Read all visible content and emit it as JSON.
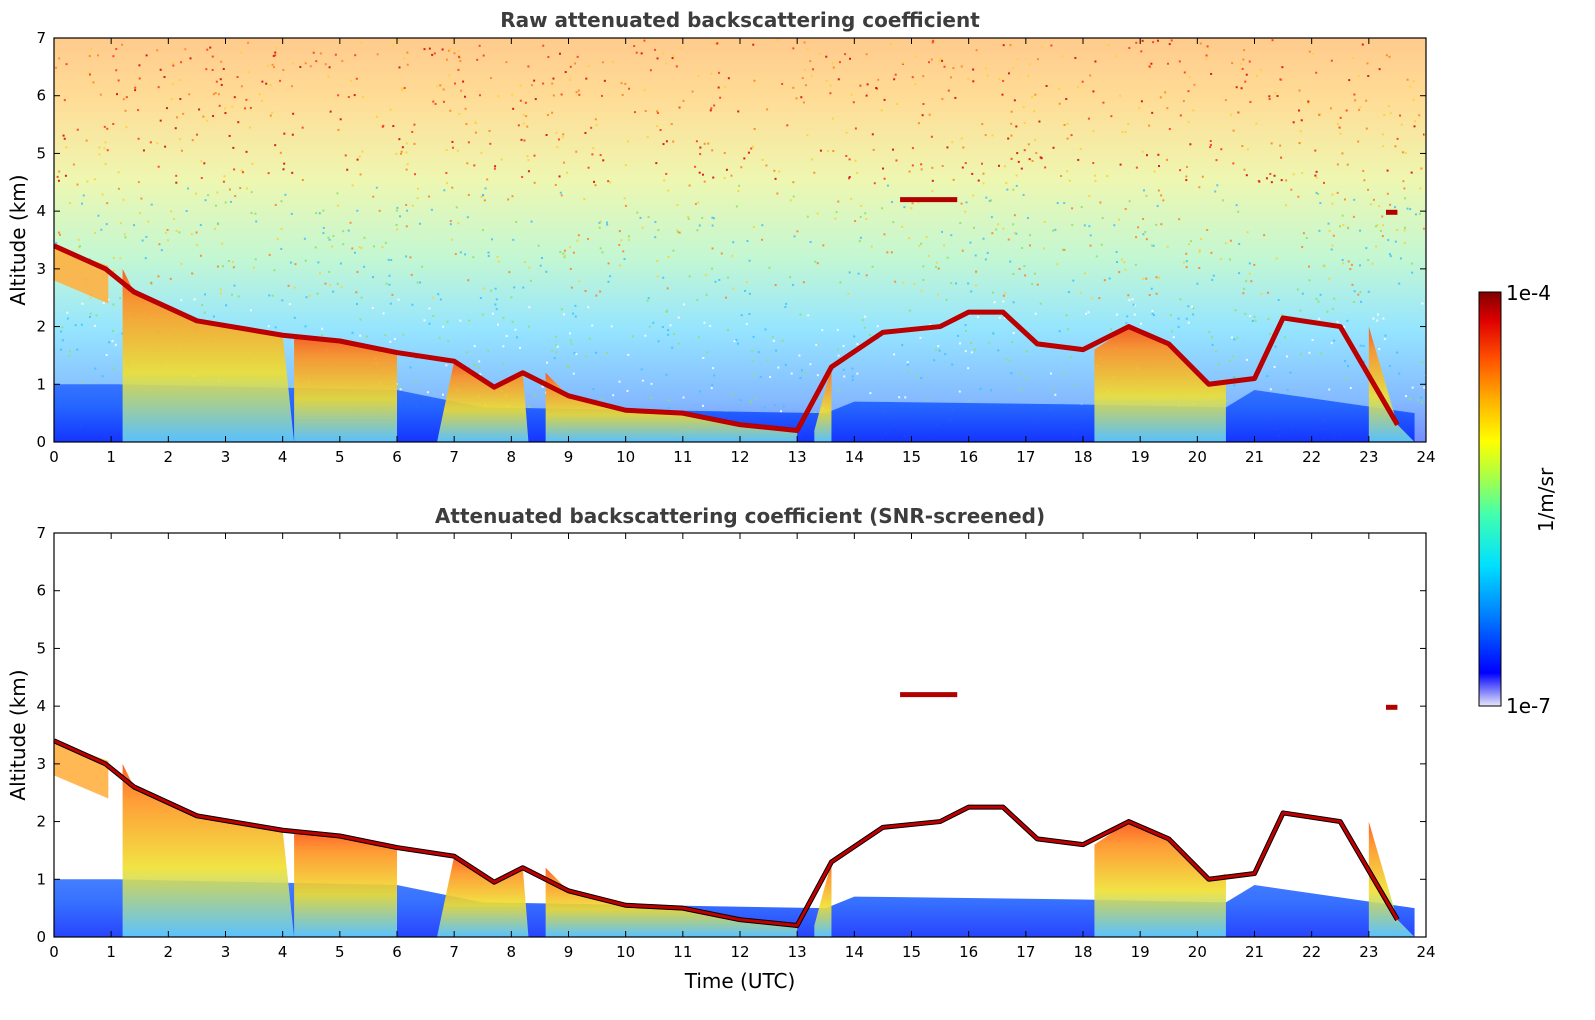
{
  "chart_data": [
    {
      "type": "heatmap",
      "title": "Raw attenuated backscattering coefficient",
      "xlabel": "",
      "ylabel": "Altitude (km)",
      "xlim": [
        0,
        24
      ],
      "ylim": [
        0,
        7
      ],
      "xticks": [
        "0",
        "1",
        "2",
        "3",
        "4",
        "5",
        "6",
        "7",
        "8",
        "9",
        "10",
        "11",
        "12",
        "13",
        "14",
        "15",
        "16",
        "17",
        "18",
        "19",
        "20",
        "21",
        "22",
        "23",
        "24"
      ],
      "yticks": [
        "0",
        "1",
        "2",
        "3",
        "4",
        "5",
        "6",
        "7"
      ],
      "cloud_base_km": [
        [
          0.0,
          3.4
        ],
        [
          0.9,
          3.0
        ],
        [
          1.4,
          2.6
        ],
        [
          2.5,
          2.1
        ],
        [
          4.0,
          1.85
        ],
        [
          5.0,
          1.75
        ],
        [
          6.0,
          1.55
        ],
        [
          7.0,
          1.4
        ],
        [
          7.7,
          0.95
        ],
        [
          8.2,
          1.2
        ],
        [
          9.0,
          0.8
        ],
        [
          10.0,
          0.55
        ],
        [
          11.0,
          0.5
        ],
        [
          12.0,
          0.3
        ],
        [
          13.0,
          0.2
        ],
        [
          13.6,
          1.3
        ],
        [
          14.5,
          1.9
        ],
        [
          15.5,
          2.0
        ],
        [
          16.0,
          2.25
        ],
        [
          16.6,
          2.25
        ],
        [
          17.2,
          1.7
        ],
        [
          18.0,
          1.6
        ],
        [
          18.8,
          2.0
        ],
        [
          19.5,
          1.7
        ],
        [
          20.2,
          1.0
        ],
        [
          21.0,
          1.1
        ],
        [
          21.5,
          2.15
        ],
        [
          22.5,
          2.0
        ],
        [
          23.5,
          0.3
        ]
      ]
    },
    {
      "type": "heatmap",
      "title": "Attenuated backscattering coefficient (SNR-screened)",
      "xlabel": "Time (UTC)",
      "ylabel": "Altitude (km)",
      "xlim": [
        0,
        24
      ],
      "ylim": [
        0,
        7
      ],
      "xticks": [
        "0",
        "1",
        "2",
        "3",
        "4",
        "5",
        "6",
        "7",
        "8",
        "9",
        "10",
        "11",
        "12",
        "13",
        "14",
        "15",
        "16",
        "17",
        "18",
        "19",
        "20",
        "21",
        "22",
        "23",
        "24"
      ],
      "yticks": [
        "0",
        "1",
        "2",
        "3",
        "4",
        "5",
        "6",
        "7"
      ]
    }
  ],
  "colorbar": {
    "label": "1/m/sr",
    "max_label": "1e-4",
    "min_label": "1e-7",
    "colormap": [
      "#e8e8f8",
      "#0000ff",
      "#0080ff",
      "#00e0ff",
      "#40ffb0",
      "#b0ff40",
      "#ffff00",
      "#ffb000",
      "#ff5000",
      "#e00000",
      "#800000"
    ]
  }
}
